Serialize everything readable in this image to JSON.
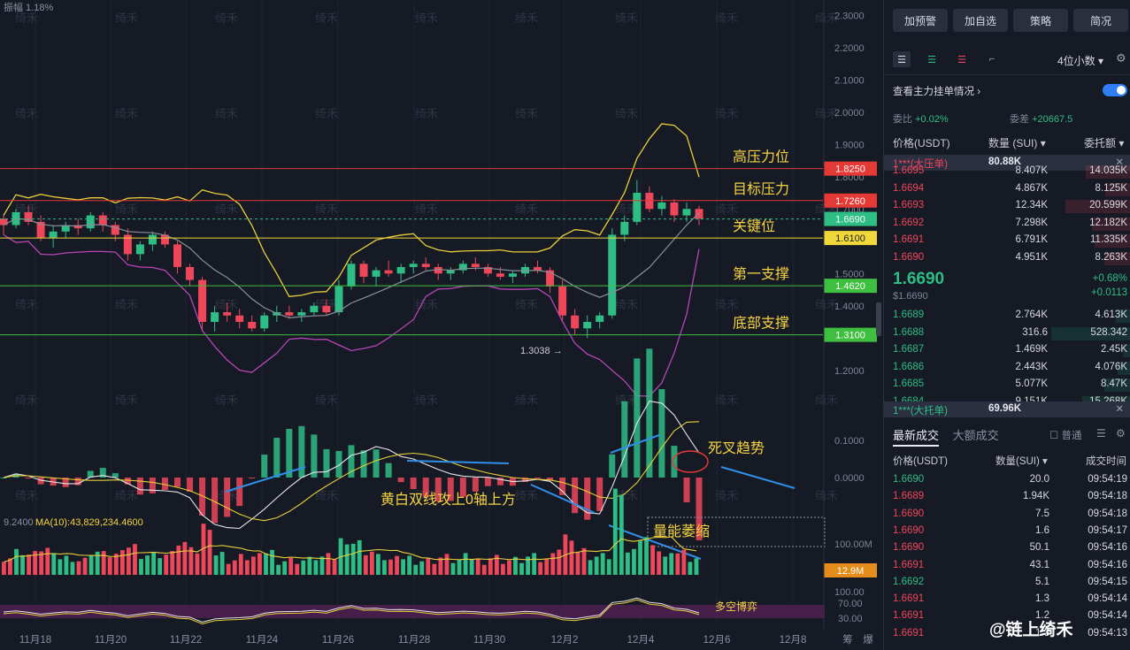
{
  "chart_data": {
    "type": "candlestick",
    "top_label": "振幅 1.18%",
    "price_axis_ticks": [
      "2.3000",
      "2.2000",
      "2.1000",
      "2.0000",
      "1.9000",
      "1.8000",
      "1.7000",
      "1.6000",
      "1.5000",
      "1.4000",
      "1.3000",
      "1.2000"
    ],
    "macd_axis_ticks": [
      "0.1000",
      "0.0000"
    ],
    "vol_axis_ticks": [
      "100.00M"
    ],
    "rsi_axis_ticks": [
      "100.00",
      "70.00",
      "30.00"
    ],
    "x_ticks": [
      "11月18",
      "11月20",
      "11月22",
      "11月24",
      "11月26",
      "11月28",
      "11月30",
      "12月2",
      "12月4",
      "12月6",
      "12月8"
    ],
    "price_range": [
      1.15,
      2.32
    ],
    "candles": [
      [
        1.67,
        1.68,
        1.62,
        1.65
      ],
      [
        1.65,
        1.7,
        1.64,
        1.69
      ],
      [
        1.69,
        1.71,
        1.65,
        1.66
      ],
      [
        1.66,
        1.68,
        1.6,
        1.61
      ],
      [
        1.61,
        1.65,
        1.58,
        1.63
      ],
      [
        1.63,
        1.66,
        1.61,
        1.65
      ],
      [
        1.65,
        1.67,
        1.62,
        1.64
      ],
      [
        1.64,
        1.69,
        1.63,
        1.68
      ],
      [
        1.68,
        1.69,
        1.63,
        1.65
      ],
      [
        1.65,
        1.66,
        1.6,
        1.62
      ],
      [
        1.62,
        1.64,
        1.54,
        1.56
      ],
      [
        1.56,
        1.6,
        1.54,
        1.59
      ],
      [
        1.59,
        1.63,
        1.57,
        1.62
      ],
      [
        1.62,
        1.63,
        1.58,
        1.59
      ],
      [
        1.59,
        1.6,
        1.5,
        1.52
      ],
      [
        1.52,
        1.53,
        1.46,
        1.48
      ],
      [
        1.48,
        1.49,
        1.32,
        1.35
      ],
      [
        1.35,
        1.4,
        1.32,
        1.38
      ],
      [
        1.38,
        1.41,
        1.35,
        1.37
      ],
      [
        1.37,
        1.39,
        1.33,
        1.35
      ],
      [
        1.35,
        1.37,
        1.32,
        1.33
      ],
      [
        1.33,
        1.38,
        1.32,
        1.37
      ],
      [
        1.37,
        1.4,
        1.35,
        1.38
      ],
      [
        1.38,
        1.4,
        1.36,
        1.37
      ],
      [
        1.37,
        1.39,
        1.35,
        1.38
      ],
      [
        1.38,
        1.41,
        1.37,
        1.4
      ],
      [
        1.4,
        1.42,
        1.37,
        1.38
      ],
      [
        1.38,
        1.48,
        1.37,
        1.46
      ],
      [
        1.46,
        1.54,
        1.45,
        1.53
      ],
      [
        1.53,
        1.54,
        1.47,
        1.49
      ],
      [
        1.49,
        1.52,
        1.46,
        1.51
      ],
      [
        1.51,
        1.54,
        1.49,
        1.5
      ],
      [
        1.5,
        1.53,
        1.47,
        1.52
      ],
      [
        1.52,
        1.54,
        1.5,
        1.53
      ],
      [
        1.53,
        1.55,
        1.51,
        1.52
      ],
      [
        1.52,
        1.53,
        1.48,
        1.5
      ],
      [
        1.5,
        1.52,
        1.48,
        1.51
      ],
      [
        1.51,
        1.54,
        1.5,
        1.53
      ],
      [
        1.53,
        1.55,
        1.51,
        1.52
      ],
      [
        1.52,
        1.53,
        1.49,
        1.5
      ],
      [
        1.5,
        1.52,
        1.48,
        1.49
      ],
      [
        1.49,
        1.51,
        1.47,
        1.5
      ],
      [
        1.5,
        1.53,
        1.49,
        1.52
      ],
      [
        1.52,
        1.54,
        1.5,
        1.51
      ],
      [
        1.51,
        1.52,
        1.44,
        1.46
      ],
      [
        1.46,
        1.48,
        1.35,
        1.37
      ],
      [
        1.37,
        1.39,
        1.31,
        1.33
      ],
      [
        1.33,
        1.37,
        1.3,
        1.35
      ],
      [
        1.35,
        1.38,
        1.33,
        1.37
      ],
      [
        1.37,
        1.64,
        1.36,
        1.62
      ],
      [
        1.62,
        1.68,
        1.6,
        1.66
      ],
      [
        1.66,
        1.79,
        1.65,
        1.75
      ],
      [
        1.75,
        1.77,
        1.69,
        1.7
      ],
      [
        1.7,
        1.74,
        1.68,
        1.72
      ],
      [
        1.72,
        1.73,
        1.66,
        1.68
      ],
      [
        1.68,
        1.72,
        1.66,
        1.7
      ],
      [
        1.7,
        1.71,
        1.65,
        1.67
      ]
    ],
    "horizontal_levels": [
      {
        "name": "高压力位",
        "value": 1.825,
        "label": "1.8250",
        "color": "#e53935"
      },
      {
        "name": "目标压力",
        "value": 1.726,
        "label": "1.7260",
        "color": "#e53935"
      },
      {
        "name": "关键位",
        "value": 1.61,
        "label": "1.6100",
        "color": "#f0d83a"
      },
      {
        "name": "第一支撑",
        "value": 1.462,
        "label": "1.4620",
        "color": "#3fbf3f"
      },
      {
        "name": "底部支撑",
        "value": 1.31,
        "label": "1.3100",
        "color": "#3fbf3f"
      }
    ],
    "last_price": {
      "value": 1.669,
      "label": "1.6690",
      "color": "#2ebd85"
    },
    "low_annotation": "1.3038",
    "annotations": [
      "死叉趋势",
      "黄白双线攻上0轴上方",
      "量能萎缩",
      "多空博弈"
    ],
    "vol_label": "MA(10):43,829,234.4600",
    "vol_label_prefix": "9.2400",
    "vol_last_tag": "12.9M",
    "bottom_right_labels": [
      "筹",
      "爆"
    ],
    "watermark_text": "绮禾"
  },
  "panel": {
    "buttons": [
      "加预警",
      "加自选",
      "策略",
      "简况"
    ],
    "decimals": "4位小数",
    "main_force": "查看主力挂单情况",
    "ratio_left_label": "委比",
    "ratio_left_value": "+0.02%",
    "ratio_right_label": "委差",
    "ratio_right_value": "+20667.5",
    "headers": {
      "price": "价格(USDT)",
      "qty": "数量 (SUI)",
      "total": "委托额"
    },
    "ask_big": {
      "name": "1***(大压单)",
      "qty": "80.88K"
    },
    "asks": [
      {
        "price": "1.6695",
        "qty": "8.407K",
        "total": "14.035K"
      },
      {
        "price": "1.6694",
        "qty": "4.867K",
        "total": "8.125K"
      },
      {
        "price": "1.6693",
        "qty": "12.34K",
        "total": "20.599K"
      },
      {
        "price": "1.6692",
        "qty": "7.298K",
        "total": "12.182K"
      },
      {
        "price": "1.6691",
        "qty": "6.791K",
        "total": "11.335K"
      },
      {
        "price": "1.6690",
        "qty": "4.951K",
        "total": "8.263K"
      }
    ],
    "last_price": "1.6690",
    "last_price_usd": "$1.6690",
    "change_pct": "+0.68%",
    "change_abs": "+0.0113",
    "bids": [
      {
        "price": "1.6689",
        "qty": "2.764K",
        "total": "4.613K"
      },
      {
        "price": "1.6688",
        "qty": "316.6",
        "total": "528.342"
      },
      {
        "price": "1.6687",
        "qty": "1.469K",
        "total": "2.45K"
      },
      {
        "price": "1.6686",
        "qty": "2.443K",
        "total": "4.076K"
      },
      {
        "price": "1.6685",
        "qty": "5.077K",
        "total": "8.47K"
      },
      {
        "price": "1.6684",
        "qty": "9.151K",
        "total": "15.268K"
      }
    ],
    "bid_big": {
      "name": "1***(大托单)",
      "qty": "69.96K"
    },
    "trade_tab_active": "最新成交",
    "trade_tab_other": "大额成交",
    "trade_filter": "普通",
    "trade_headers": {
      "price": "价格(USDT)",
      "qty": "数量(SUI)",
      "time": "成交时间"
    },
    "trades": [
      {
        "price": "1.6690",
        "qty": "20.0",
        "time": "09:54:19",
        "side": "buy"
      },
      {
        "price": "1.6689",
        "qty": "1.94K",
        "time": "09:54:18",
        "side": "sell"
      },
      {
        "price": "1.6690",
        "qty": "7.5",
        "time": "09:54:18",
        "side": "sell"
      },
      {
        "price": "1.6690",
        "qty": "1.6",
        "time": "09:54:17",
        "side": "sell"
      },
      {
        "price": "1.6690",
        "qty": "50.1",
        "time": "09:54:16",
        "side": "sell"
      },
      {
        "price": "1.6691",
        "qty": "43.1",
        "time": "09:54:16",
        "side": "sell"
      },
      {
        "price": "1.6692",
        "qty": "5.1",
        "time": "09:54:15",
        "side": "buy"
      },
      {
        "price": "1.6691",
        "qty": "1.3",
        "time": "09:54:14",
        "side": "sell"
      },
      {
        "price": "1.6691",
        "qty": "1.2",
        "time": "09:54:14",
        "side": "sell"
      },
      {
        "price": "1.6691",
        "qty": "1.3",
        "time": "09:54:13",
        "side": "sell"
      }
    ],
    "watermark": "@链上绮禾"
  }
}
